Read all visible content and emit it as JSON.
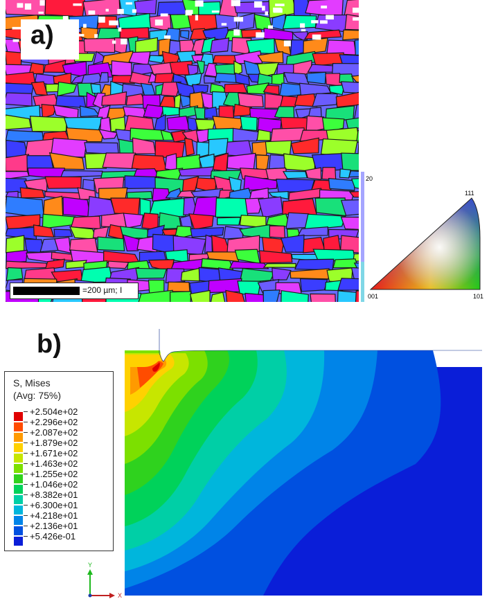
{
  "panel_a": {
    "label": "a)",
    "scale_bar_text": "=200 µm; I",
    "ipf_key": {
      "corner_001": "001",
      "corner_101": "101",
      "corner_111": "111",
      "side_value": "20"
    }
  },
  "panel_b": {
    "label": "b)",
    "legend": {
      "title_line1": "S, Mises",
      "title_line2": "(Avg: 75%)",
      "entries": [
        {
          "value": "+2.504e+02",
          "color": "#e00000"
        },
        {
          "value": "+2.296e+02",
          "color": "#ff4c00"
        },
        {
          "value": "+2.087e+02",
          "color": "#ff9a00"
        },
        {
          "value": "+1.879e+02",
          "color": "#ffd100"
        },
        {
          "value": "+1.671e+02",
          "color": "#c7e600"
        },
        {
          "value": "+1.463e+02",
          "color": "#7ce000"
        },
        {
          "value": "+1.255e+02",
          "color": "#2fd21e"
        },
        {
          "value": "+1.046e+02",
          "color": "#00d25a"
        },
        {
          "value": "+8.382e+01",
          "color": "#00cfa6"
        },
        {
          "value": "+6.300e+01",
          "color": "#00b6dc"
        },
        {
          "value": "+4.218e+01",
          "color": "#0084e8"
        },
        {
          "value": "+2.136e+01",
          "color": "#0050e0"
        },
        {
          "value": "+5.426e-01",
          "color": "#0a1ed8"
        }
      ]
    },
    "triad": {
      "y_label": "Y",
      "x_label": "X",
      "y_color": "#1db81d",
      "x_color": "#c02020"
    }
  }
}
